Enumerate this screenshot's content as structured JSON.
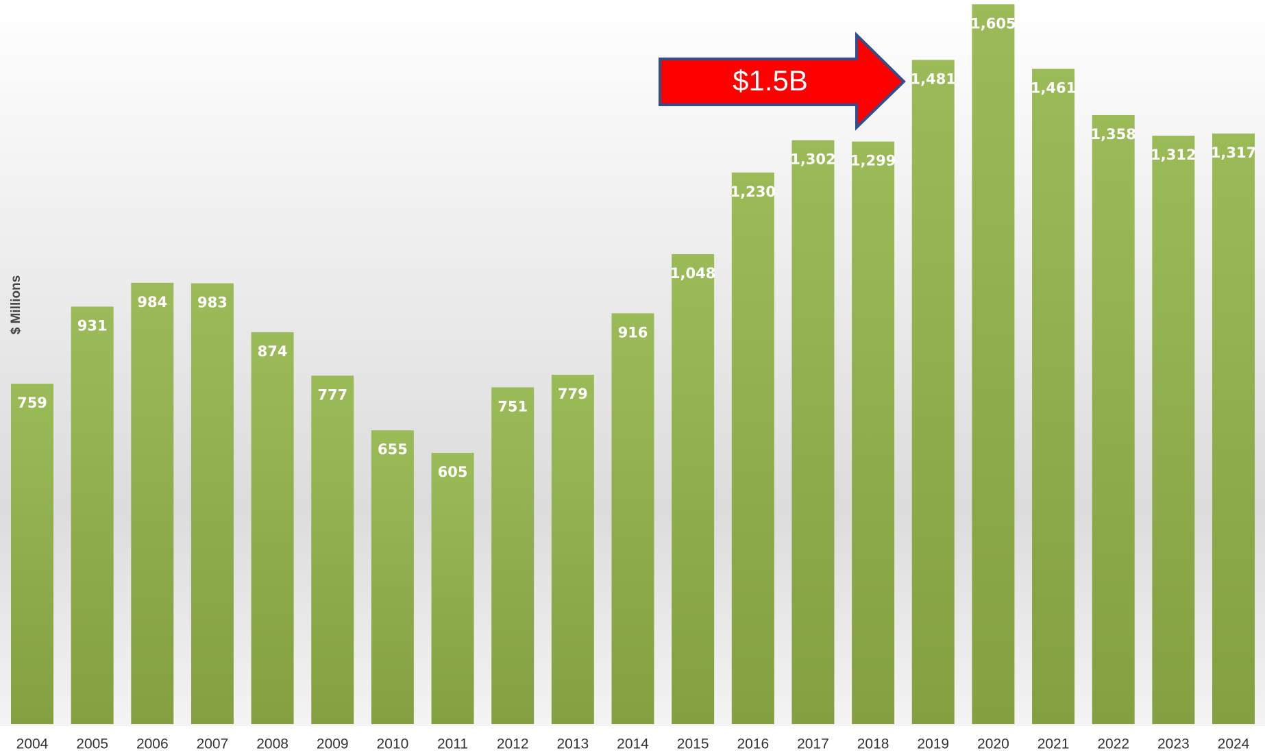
{
  "chart_data": {
    "type": "bar",
    "y_label": "$ Millions",
    "annotation": "$1.5B",
    "categories": [
      "2004",
      "2005",
      "2006",
      "2007",
      "2008",
      "2009",
      "2010",
      "2011",
      "2012",
      "2013",
      "2014",
      "2015",
      "2016",
      "2017",
      "2018",
      "2019",
      "2020",
      "2021",
      "2022",
      "2023",
      "2024"
    ],
    "values": [
      759,
      931,
      984,
      983,
      874,
      777,
      655,
      605,
      751,
      779,
      916,
      1048,
      1230,
      1302,
      1299,
      1481,
      1605,
      1461,
      1358,
      1312,
      1317
    ],
    "value_labels": [
      "759",
      "931",
      "984",
      "983",
      "874",
      "777",
      "655",
      "605",
      "751",
      "779",
      "916",
      "1,048",
      "1,230",
      "1,302",
      "1,299",
      "1,481",
      "1,605",
      "1,461",
      "1,358",
      "1,312",
      "1,317"
    ],
    "color": "#9bbb59",
    "ylim": [
      0,
      1610
    ],
    "grid": false
  }
}
